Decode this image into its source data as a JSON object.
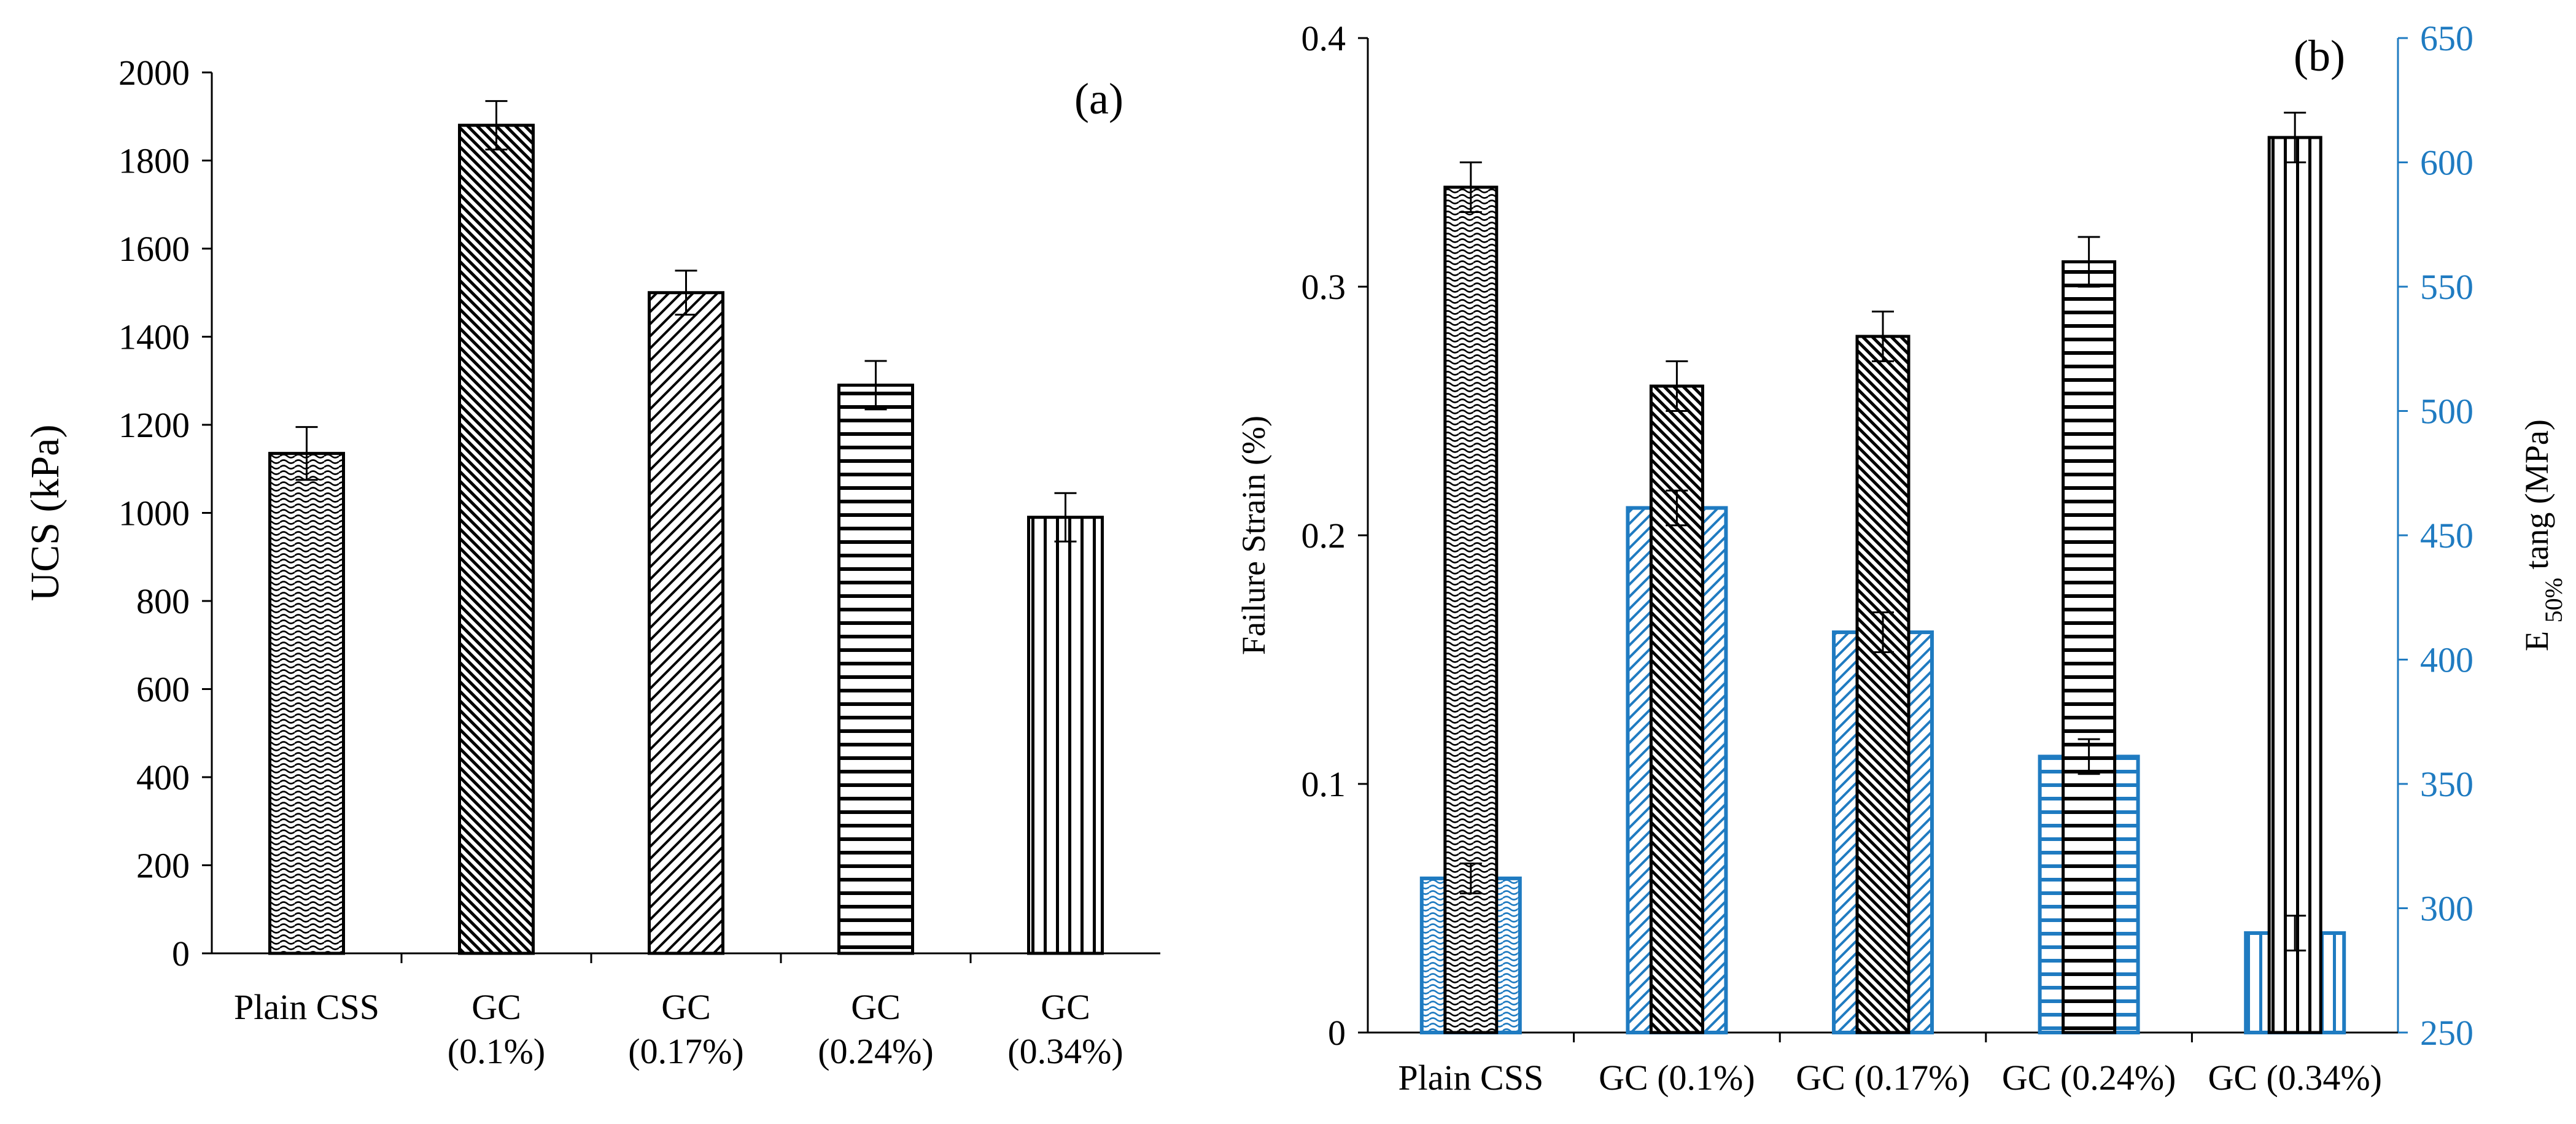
{
  "chart_data": [
    {
      "type": "bar",
      "panel_label": "(a)",
      "categories": [
        [
          "Plain CSS"
        ],
        [
          "GC",
          "(0.1%)"
        ],
        [
          "GC",
          "(0.17%)"
        ],
        [
          "GC",
          "(0.24%)"
        ],
        [
          "GC",
          "(0.34%)"
        ]
      ],
      "values": [
        1135,
        1880,
        1500,
        1290,
        990
      ],
      "errors": [
        60,
        55,
        50,
        55,
        55
      ],
      "ylabel": "UCS (kPa)",
      "ylim": [
        0,
        2000
      ],
      "yticks": [
        0,
        200,
        400,
        600,
        800,
        1000,
        1200,
        1400,
        1600,
        1800,
        2000
      ],
      "patterns": [
        "wave",
        "dense-diag",
        "diag",
        "horizontal",
        "vertical"
      ]
    },
    {
      "type": "bar",
      "panel_label": "(b)",
      "categories": [
        "Plain CSS",
        "GC (0.1%)",
        "GC (0.17%)",
        "GC (0.24%)",
        "GC (0.34%)"
      ],
      "series": [
        {
          "name": "Failure Strain",
          "axis": "left",
          "color": "#000000",
          "values": [
            0.34,
            0.26,
            0.28,
            0.31,
            0.36
          ],
          "errors": [
            0.01,
            0.01,
            0.01,
            0.01,
            0.01
          ],
          "patterns": [
            "wave",
            "dense-diag",
            "dense-diag",
            "horizontal",
            "vertical"
          ]
        },
        {
          "name": "E50% tang",
          "axis": "right",
          "color": "#1f7bc1",
          "values": [
            312,
            461,
            411,
            361,
            290
          ],
          "errors": [
            6,
            7,
            8,
            7,
            7
          ],
          "patterns": [
            "wave",
            "diag",
            "diag",
            "horizontal",
            "vertical"
          ]
        }
      ],
      "ylabel_left": "Failure Strain (%)",
      "ylabel_right_main": "E",
      "ylabel_right_sub": "50%",
      "ylabel_right_rest": "tang (MPa)",
      "ylim_left": [
        0,
        0.4
      ],
      "yticks_left": [
        "0",
        "0.1",
        "0.2",
        "0.3",
        "0.4"
      ],
      "ylim_right": [
        250,
        650
      ],
      "yticks_right": [
        250,
        300,
        350,
        400,
        450,
        500,
        550,
        600,
        650
      ],
      "right_axis_color": "#1f7bc1"
    }
  ]
}
